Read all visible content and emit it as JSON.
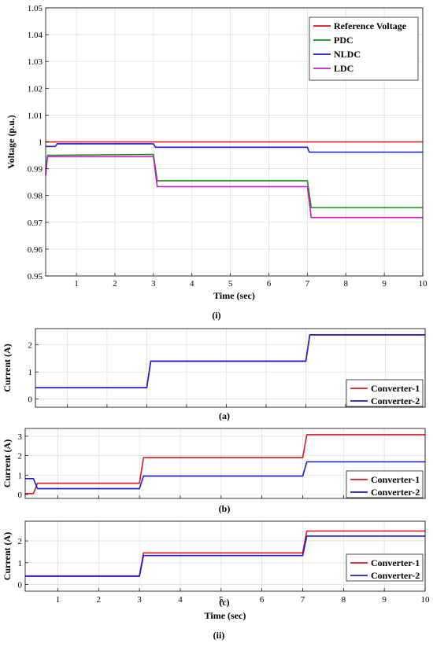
{
  "chart_data": [
    {
      "type": "line",
      "panel": "(i)",
      "xlabel": "Time (sec)",
      "ylabel": "Voltage (p.u.)",
      "xlim": [
        0.2,
        10
      ],
      "ylim": [
        0.95,
        1.05
      ],
      "xticks": [
        1,
        2,
        3,
        4,
        5,
        6,
        7,
        8,
        9,
        10
      ],
      "yticks": [
        0.95,
        0.96,
        0.97,
        0.98,
        0.99,
        1,
        1.01,
        1.02,
        1.03,
        1.04,
        1.05
      ],
      "ytick_labels": [
        "0.95",
        "0.96",
        "0.97",
        "0.98",
        "0.99",
        "1",
        "1.01",
        "1.02",
        "1.03",
        "1.04",
        "1.05"
      ],
      "grid": true,
      "legend": "top-right",
      "series": [
        {
          "name": "Reference Voltage",
          "color": "#e0141e",
          "points": [
            [
              0.2,
              1.0
            ],
            [
              10,
              1.0
            ]
          ]
        },
        {
          "name": "PDC",
          "color": "#1a8c1a",
          "points": [
            [
              0.2,
              0.9895
            ],
            [
              0.25,
              0.995
            ],
            [
              3.0,
              0.9953
            ],
            [
              3.1,
              0.9855
            ],
            [
              7.0,
              0.9855
            ],
            [
              7.1,
              0.9755
            ],
            [
              10,
              0.9755
            ]
          ]
        },
        {
          "name": "NLDC",
          "color": "#1c1cd6",
          "points": [
            [
              0.2,
              0.9983
            ],
            [
              0.45,
              0.9983
            ],
            [
              0.5,
              0.9993
            ],
            [
              3.0,
              0.9993
            ],
            [
              3.05,
              0.998
            ],
            [
              7.0,
              0.998
            ],
            [
              7.05,
              0.9962
            ],
            [
              10,
              0.9962
            ]
          ]
        },
        {
          "name": "LDC",
          "color": "#c81ec8",
          "points": [
            [
              0.2,
              0.9875
            ],
            [
              0.25,
              0.9945
            ],
            [
              3.0,
              0.9945
            ],
            [
              3.1,
              0.9833
            ],
            [
              7.0,
              0.9833
            ],
            [
              7.1,
              0.9718
            ],
            [
              10,
              0.9718
            ]
          ]
        }
      ]
    },
    {
      "type": "line",
      "panel": "(a)",
      "xlabel": "",
      "ylabel": "Current (A)",
      "xlim": [
        0.2,
        10
      ],
      "ylim": [
        -0.3,
        2.6
      ],
      "xticks": [
        1,
        2,
        3,
        4,
        5,
        6,
        7,
        8,
        9,
        10
      ],
      "yticks": [
        0,
        1,
        2
      ],
      "ytick_labels": [
        "0",
        "1",
        "2"
      ],
      "grid": true,
      "legend": "bottom-right",
      "series": [
        {
          "name": "Converter-1",
          "color": "#e0141e",
          "points": [
            [
              0.2,
              0.42
            ],
            [
              3.0,
              0.42
            ],
            [
              3.1,
              1.4
            ],
            [
              7.0,
              1.4
            ],
            [
              7.1,
              2.37
            ],
            [
              10,
              2.37
            ]
          ]
        },
        {
          "name": "Converter-2",
          "color": "#1c1cd6",
          "points": [
            [
              0.2,
              0.42
            ],
            [
              3.0,
              0.42
            ],
            [
              3.1,
              1.4
            ],
            [
              7.0,
              1.4
            ],
            [
              7.1,
              2.37
            ],
            [
              10,
              2.37
            ]
          ]
        }
      ]
    },
    {
      "type": "line",
      "panel": "(b)",
      "xlabel": "",
      "ylabel": "Current (A)",
      "xlim": [
        0.2,
        10
      ],
      "ylim": [
        -0.2,
        3.4
      ],
      "xticks": [
        1,
        2,
        3,
        4,
        5,
        6,
        7,
        8,
        9,
        10
      ],
      "yticks": [
        0,
        1,
        2,
        3
      ],
      "ytick_labels": [
        "0",
        "1",
        "2",
        "3"
      ],
      "grid": true,
      "legend": "bottom-right",
      "series": [
        {
          "name": "Converter-1",
          "color": "#e0141e",
          "points": [
            [
              0.2,
              0.05
            ],
            [
              0.4,
              0.05
            ],
            [
              0.5,
              0.58
            ],
            [
              3.0,
              0.58
            ],
            [
              3.1,
              1.9
            ],
            [
              7.0,
              1.9
            ],
            [
              7.1,
              3.08
            ],
            [
              10,
              3.08
            ]
          ]
        },
        {
          "name": "Converter-2",
          "color": "#1c1cd6",
          "points": [
            [
              0.2,
              0.82
            ],
            [
              0.4,
              0.82
            ],
            [
              0.5,
              0.3
            ],
            [
              3.0,
              0.3
            ],
            [
              3.1,
              0.95
            ],
            [
              7.0,
              0.95
            ],
            [
              7.1,
              1.68
            ],
            [
              10,
              1.68
            ]
          ]
        }
      ]
    },
    {
      "type": "line",
      "panel": "(c)",
      "xlabel": "Time (sec)",
      "ylabel": "Current (A)",
      "xlim": [
        0.2,
        10
      ],
      "ylim": [
        -0.3,
        2.9
      ],
      "xticks": [
        1,
        2,
        3,
        4,
        5,
        6,
        7,
        8,
        9,
        10
      ],
      "yticks": [
        0,
        1,
        2
      ],
      "ytick_labels": [
        "0",
        "1",
        "2"
      ],
      "grid": true,
      "legend": "bottom-right",
      "series": [
        {
          "name": "Converter-1",
          "color": "#e0141e",
          "points": [
            [
              0.2,
              0.4
            ],
            [
              3.0,
              0.4
            ],
            [
              3.1,
              1.45
            ],
            [
              7.0,
              1.45
            ],
            [
              7.1,
              2.45
            ],
            [
              10,
              2.45
            ]
          ]
        },
        {
          "name": "Converter-2",
          "color": "#1c1cd6",
          "points": [
            [
              0.2,
              0.38
            ],
            [
              3.0,
              0.38
            ],
            [
              3.1,
              1.33
            ],
            [
              7.0,
              1.33
            ],
            [
              7.1,
              2.22
            ],
            [
              10,
              2.22
            ]
          ]
        }
      ]
    }
  ],
  "captions": {
    "i": "(i)",
    "a": "(a)",
    "b": "(b)",
    "c": "(c)",
    "ii": "(ii)"
  }
}
